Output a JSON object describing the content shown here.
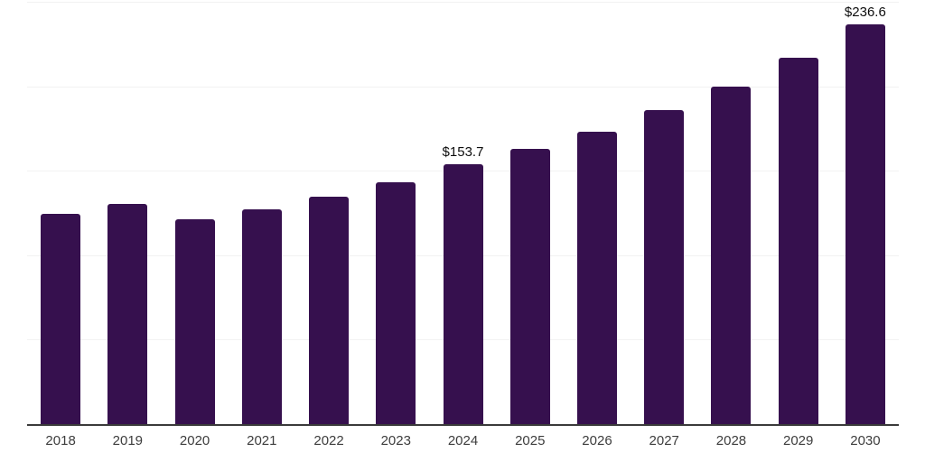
{
  "chart_data": {
    "type": "bar",
    "title": "",
    "xlabel": "",
    "ylabel": "",
    "categories": [
      "2018",
      "2019",
      "2020",
      "2021",
      "2022",
      "2023",
      "2024",
      "2025",
      "2026",
      "2027",
      "2028",
      "2029",
      "2030"
    ],
    "values": [
      124.3,
      130.6,
      121.5,
      127.4,
      134.4,
      143.4,
      153.7,
      163.0,
      173.2,
      186.0,
      200.0,
      216.8,
      236.6
    ],
    "annotations": [
      {
        "category": "2024",
        "index": 6,
        "text": "$153.7"
      },
      {
        "category": "2030",
        "index": 12,
        "text": "$236.6"
      }
    ],
    "ylim": [
      0,
      250
    ],
    "gridline_values": [
      50,
      100,
      150,
      200,
      250
    ],
    "grid": true,
    "legend_position": "none",
    "y_axis_labels_visible": false,
    "bar_color": "#36104E",
    "axis_line_color": "#3a3a3a",
    "tick_label_color": "#3d3d3d",
    "annotation_color": "#0d0d0d",
    "gridline_color": "#f2f2f2",
    "background_color": "#ffffff"
  }
}
